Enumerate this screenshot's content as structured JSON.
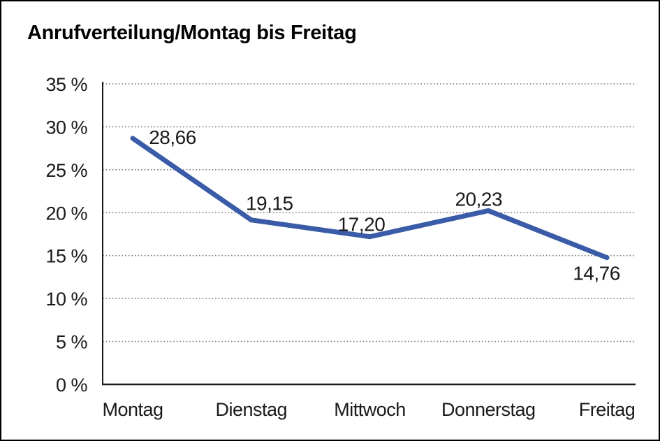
{
  "chart_data": {
    "type": "line",
    "title": "Anrufverteilung/Montag bis Freitag",
    "categories": [
      "Montag",
      "Dienstag",
      "Mittwoch",
      "Donnerstag",
      "Freitag"
    ],
    "series": [
      {
        "name": "Anrufverteilung",
        "values": [
          28.66,
          19.15,
          17.2,
          20.23,
          14.76
        ]
      }
    ],
    "value_labels": [
      "28,66",
      "19,15",
      "17,20",
      "20,23",
      "14,76"
    ],
    "xlabel": "",
    "ylabel": "",
    "ylim": [
      0,
      35
    ],
    "ytick_step": 5,
    "ytick_labels": [
      "0 %",
      "5 %",
      "10 %",
      "15 %",
      "20 %",
      "25 %",
      "30 %",
      "35 %"
    ],
    "grid": "horizontal-dotted",
    "legend": "none",
    "colors": {
      "line": "#3A5CA8",
      "text": "#1A1A1A",
      "gridline": "#7F7F7F",
      "axis": "#1A1A1A",
      "background": "#FFFFFF",
      "frame_border": "#000000"
    }
  }
}
